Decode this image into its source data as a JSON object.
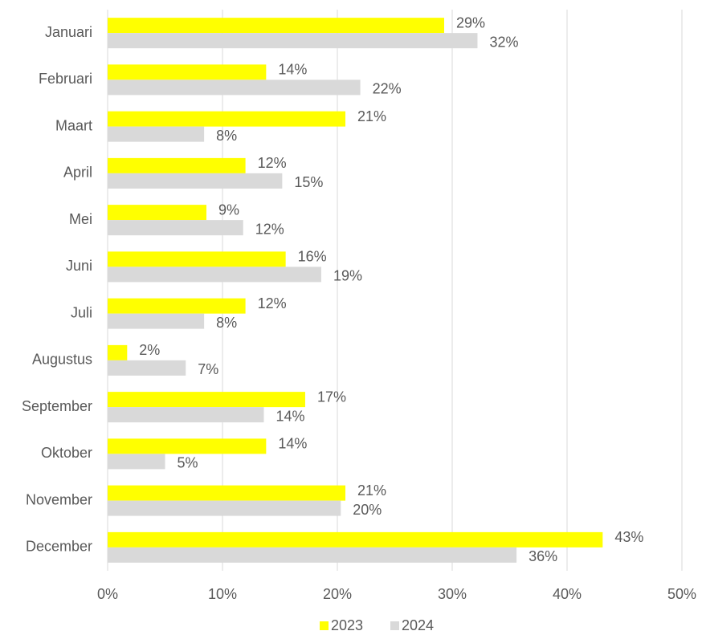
{
  "chart_data": {
    "type": "hbar",
    "categories": [
      "Januari",
      "Februari",
      "Maart",
      "April",
      "Mei",
      "Juni",
      "Juli",
      "Augustus",
      "September",
      "Oktober",
      "November",
      "December"
    ],
    "series": [
      {
        "name": "2023",
        "color": "#ffff00",
        "values": [
          29.3,
          13.8,
          20.7,
          12.0,
          8.6,
          15.5,
          12.0,
          1.7,
          17.2,
          13.8,
          20.7,
          43.1
        ],
        "value_labels": [
          "29%",
          "14%",
          "21%",
          "12%",
          "9%",
          "16%",
          "12%",
          "2%",
          "17%",
          "14%",
          "21%",
          "43%"
        ]
      },
      {
        "name": "2024",
        "color": "#d9d9d9",
        "values": [
          32.2,
          22.0,
          8.4,
          15.2,
          11.8,
          18.6,
          8.4,
          6.8,
          13.6,
          5.0,
          20.3,
          35.6
        ],
        "value_labels": [
          "32%",
          "22%",
          "8%",
          "15%",
          "12%",
          "19%",
          "8%",
          "7%",
          "14%",
          "5%",
          "20%",
          "36%"
        ]
      }
    ],
    "xlim": [
      0,
      50
    ],
    "xticks": [
      {
        "value": 0,
        "label": "0%"
      },
      {
        "value": 10,
        "label": "10%"
      },
      {
        "value": 20,
        "label": "20%"
      },
      {
        "value": 30,
        "label": "30%"
      },
      {
        "value": 40,
        "label": "40%"
      },
      {
        "value": 50,
        "label": "50%"
      }
    ],
    "grid": true,
    "legend": "bottom"
  }
}
